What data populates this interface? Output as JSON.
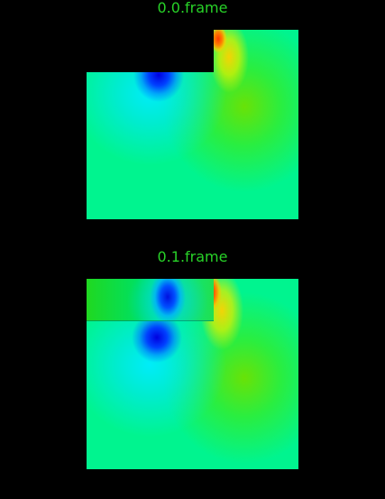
{
  "frames": [
    {
      "title": "0.0.frame"
    },
    {
      "title": "0.1.frame"
    }
  ],
  "colors": {
    "background": "#000000",
    "title_text": "#28d228",
    "field_base": "#00f48f",
    "low": "#0000e0",
    "high": "#ff3a00"
  }
}
